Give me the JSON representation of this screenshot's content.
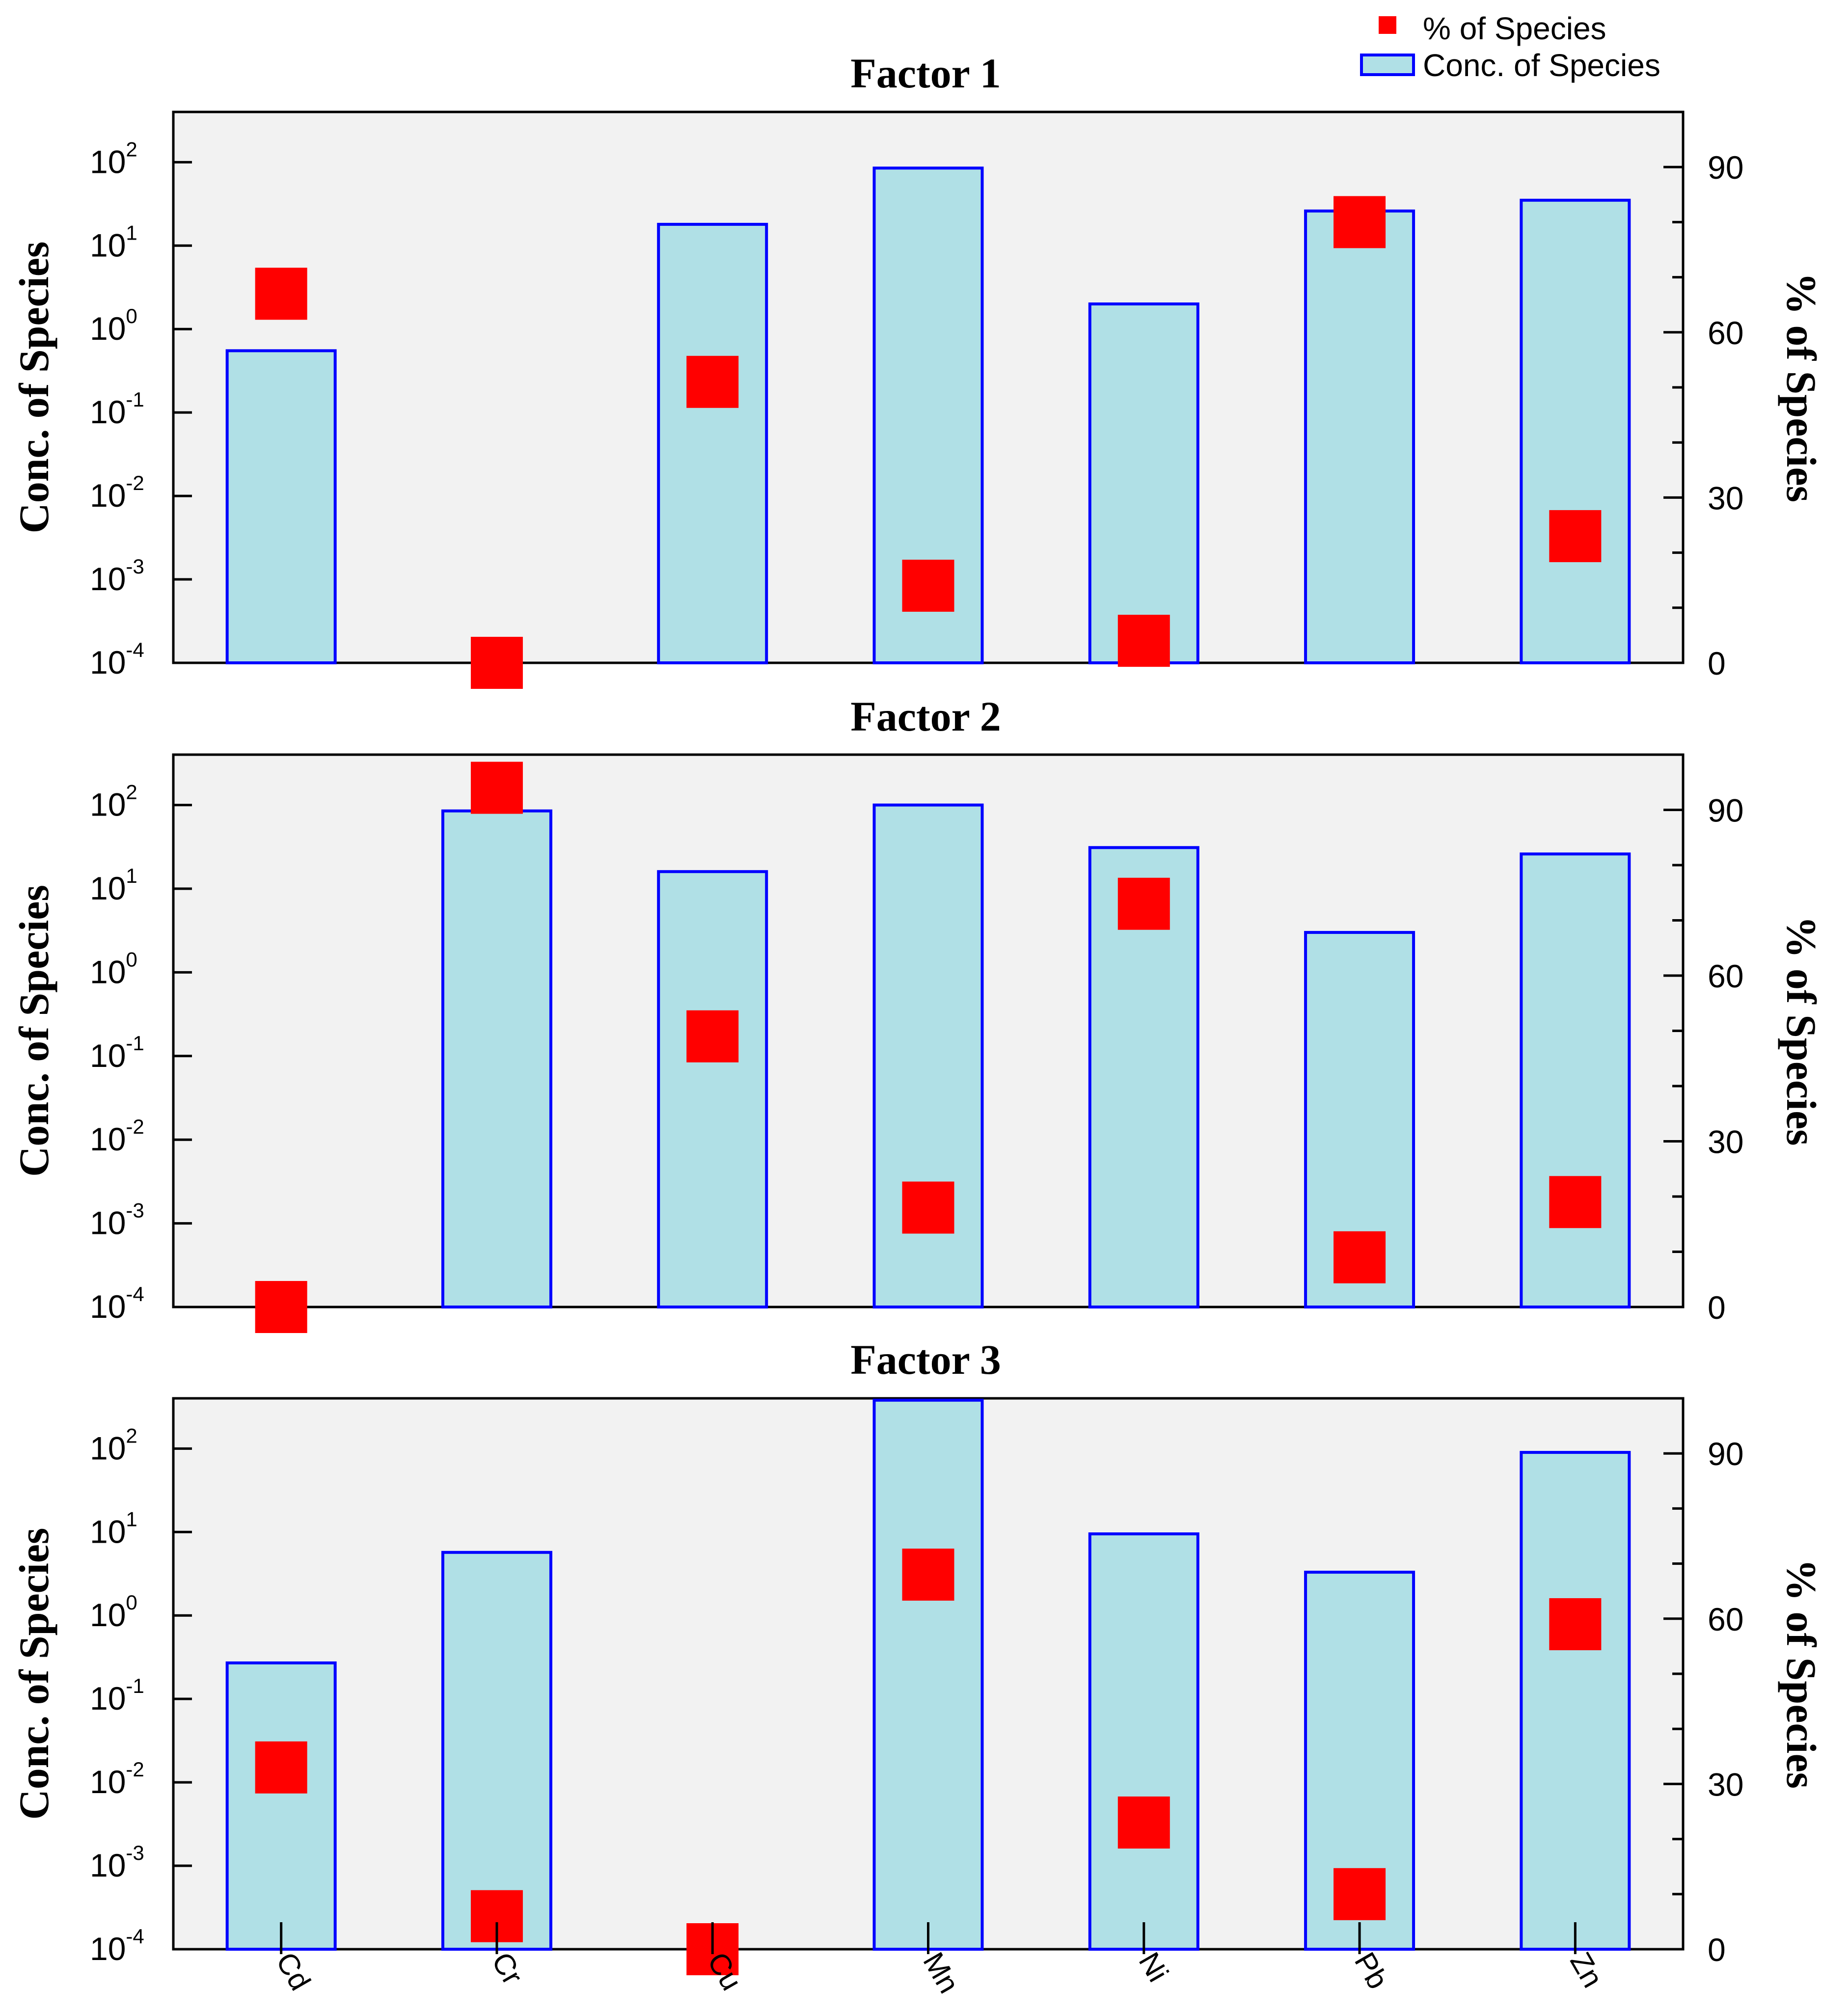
{
  "legend": {
    "marker_label": "% of Species",
    "bar_label": "Conc. of Species"
  },
  "colors": {
    "bar_fill": "#b0e0e6",
    "bar_stroke": "#0000ff",
    "marker": "#ff0000",
    "panel_bg": "#f2f2f2"
  },
  "chart_data": [
    {
      "type": "bar",
      "title": "Factor 1",
      "categories": [
        "Cd",
        "Cr",
        "Cu",
        "Mn",
        "Ni",
        "Pb",
        "Zn"
      ],
      "ylabel": "Conc. of Species",
      "y2label": "% of Species",
      "yscale": "log",
      "ylim": [
        0.0001,
        400
      ],
      "y2lim": [
        0,
        100
      ],
      "y2ticks": [
        0,
        30,
        60,
        90
      ],
      "series": [
        {
          "name": "Conc. of Species",
          "kind": "bar",
          "values": [
            0.55,
            0,
            18,
            85,
            2.0,
            26,
            35
          ]
        },
        {
          "name": "% of Species",
          "kind": "marker",
          "values": [
            67,
            0,
            51,
            14,
            4,
            80,
            23
          ]
        }
      ]
    },
    {
      "type": "bar",
      "title": "Factor 2",
      "categories": [
        "Cd",
        "Cr",
        "Cu",
        "Mn",
        "Ni",
        "Pb",
        "Zn"
      ],
      "ylabel": "Conc. of Species",
      "y2label": "% of Species",
      "yscale": "log",
      "ylim": [
        0.0001,
        400
      ],
      "y2lim": [
        0,
        100
      ],
      "y2ticks": [
        0,
        30,
        60,
        90
      ],
      "series": [
        {
          "name": "Conc. of Species",
          "kind": "bar",
          "values": [
            0,
            85,
            16,
            100,
            31,
            3.0,
            26
          ]
        },
        {
          "name": "% of Species",
          "kind": "marker",
          "values": [
            0,
            94,
            49,
            18,
            73,
            9,
            19
          ]
        }
      ]
    },
    {
      "type": "bar",
      "title": "Factor 3",
      "categories": [
        "Cd",
        "Cr",
        "Cu",
        "Mn",
        "Ni",
        "Pb",
        "Zn"
      ],
      "ylabel": "Conc. of Species",
      "y2label": "% of Species",
      "yscale": "log",
      "ylim": [
        0.0001,
        400
      ],
      "y2lim": [
        0,
        100
      ],
      "y2ticks": [
        0,
        30,
        60,
        90
      ],
      "series": [
        {
          "name": "Conc. of Species",
          "kind": "bar",
          "values": [
            0.27,
            5.7,
            0,
            380,
            9.5,
            3.3,
            90
          ]
        },
        {
          "name": "% of Species",
          "kind": "marker",
          "values": [
            33,
            6,
            0,
            68,
            23,
            10,
            59
          ]
        }
      ]
    }
  ]
}
